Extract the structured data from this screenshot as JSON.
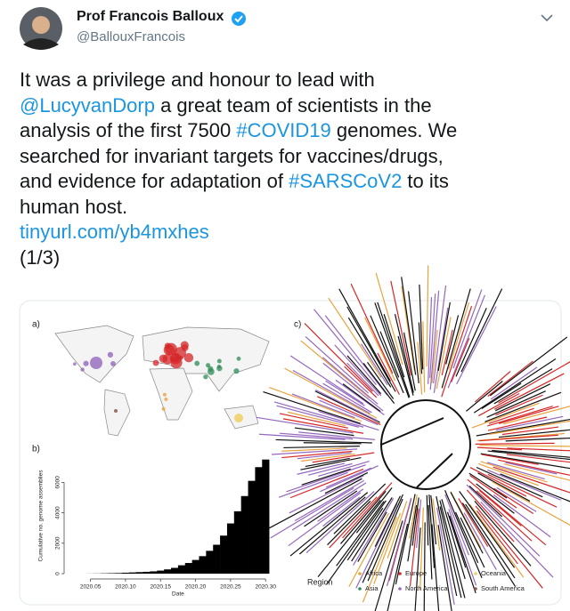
{
  "tweet": {
    "author": {
      "name": "Prof Francois Balloux",
      "handle": "@BallouxFrancois"
    },
    "lines": [
      [
        {
          "text": "It was a privilege and honour to lead with"
        }
      ],
      [
        {
          "text": "@LucyvanDorp",
          "link": true
        },
        {
          "text": " a great team of scientists in the"
        }
      ],
      [
        {
          "text": "analysis of the first 7500 "
        },
        {
          "text": "#COVID19",
          "link": true
        },
        {
          "text": " genomes. We"
        }
      ],
      [
        {
          "text": "searched for invariant targets for vaccines/drugs,"
        }
      ],
      [
        {
          "text": "and evidence for adaptation of "
        },
        {
          "text": "#SARSCoV2",
          "link": true
        },
        {
          "text": " to its"
        }
      ],
      [
        {
          "text": "human host."
        }
      ]
    ],
    "url": "tinyurl.com/yb4mxhes",
    "thread": "(1/3)"
  },
  "figure": {
    "panel_labels": [
      "a)",
      "b)",
      "c)"
    ],
    "chart": {
      "type": "bar",
      "xlabel": "Date",
      "ylabel": "Cumulative no. genome assemblies",
      "color": "#000000",
      "x": [
        2020.05,
        2020.06,
        2020.07,
        2020.08,
        2020.09,
        2020.1,
        2020.11,
        2020.12,
        2020.13,
        2020.14,
        2020.15,
        2020.16,
        2020.17,
        2020.18,
        2020.19,
        2020.2,
        2020.21,
        2020.22,
        2020.23,
        2020.24,
        2020.25,
        2020.26,
        2020.27,
        2020.28,
        2020.29,
        2020.3
      ],
      "values": [
        5,
        10,
        20,
        30,
        40,
        60,
        80,
        100,
        120,
        150,
        200,
        280,
        380,
        550,
        700,
        900,
        1150,
        1500,
        1900,
        2500,
        3300,
        4100,
        5100,
        6100,
        7000,
        7500
      ],
      "xlim": [
        2020.02,
        2020.315
      ],
      "ylim": [
        0,
        7600
      ],
      "xticks": [
        2020.05,
        {
          "value": 2020.1,
          "label": "2020.10"
        },
        2020.15,
        {
          "value": 2020.2,
          "label": "2020.20"
        },
        2020.25,
        {
          "value": 2020.3,
          "label": "2020.30"
        }
      ],
      "yticks": [
        0,
        2000,
        4000,
        6000
      ]
    },
    "legend": {
      "title": "Region",
      "items": [
        {
          "name": "Africa",
          "color": "#e8a33d"
        },
        {
          "name": "Asia",
          "color": "#2e8b57"
        },
        {
          "name": "Europe",
          "color": "#d62728"
        },
        {
          "name": "North America",
          "color": "#9467bd"
        },
        {
          "name": "Oceania",
          "color": "#f0d060"
        },
        {
          "name": "South America",
          "color": "#8c564b"
        }
      ]
    }
  }
}
